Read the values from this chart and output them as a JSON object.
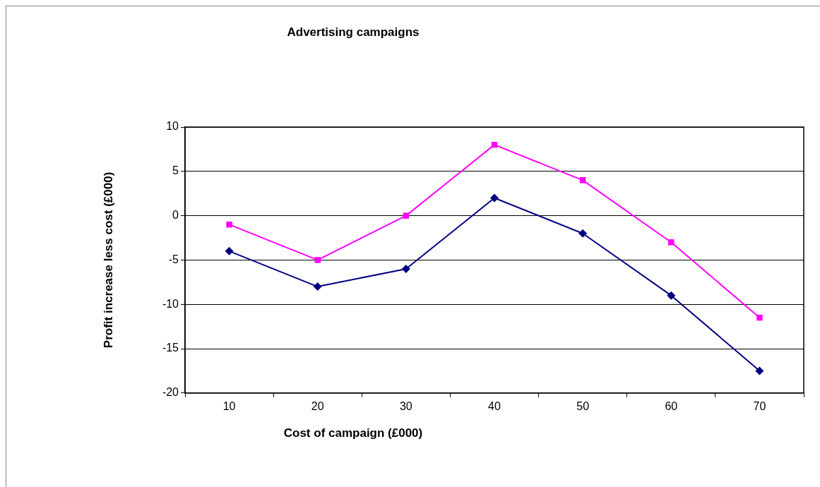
{
  "chart_data": {
    "type": "line",
    "title": "Advertising campaigns",
    "xlabel": "Cost of campaign (£000)",
    "ylabel": "Profit increase less cost (£000)",
    "categories": [
      "10",
      "20",
      "30",
      "40",
      "50",
      "60",
      "70"
    ],
    "series": [
      {
        "color": "#000080",
        "marker": "diamond",
        "values": [
          -4,
          -8,
          -6,
          2,
          -2,
          -9,
          -17.5
        ]
      },
      {
        "color": "#ff00ff",
        "marker": "square",
        "values": [
          -1,
          -5,
          0,
          8,
          4,
          -3,
          -11.5
        ]
      }
    ],
    "ylim": [
      -20,
      10
    ],
    "yticks": [
      -20,
      -15,
      -10,
      -5,
      0,
      5,
      10
    ],
    "grid": "y",
    "legend": false,
    "line_style": "solid"
  }
}
